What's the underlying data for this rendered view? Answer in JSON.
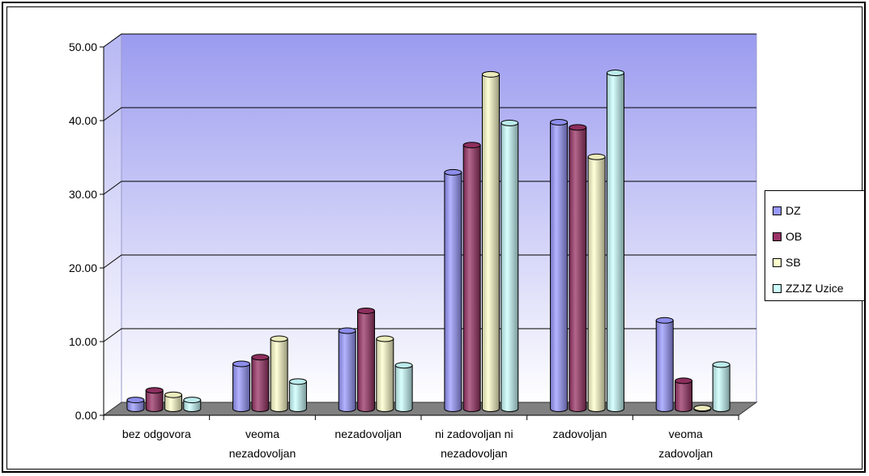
{
  "chart_data": {
    "type": "bar",
    "title": "",
    "xlabel": "",
    "ylabel": "",
    "categories": [
      [
        "bez odgovora"
      ],
      [
        "veoma",
        "nezadovoljan"
      ],
      [
        "nezadovoljan"
      ],
      [
        "ni zadovoljan ni",
        "nezadovoljan"
      ],
      [
        "zadovoljan"
      ],
      [
        "veoma",
        "zadovoljan"
      ]
    ],
    "series": [
      {
        "name": "DZ",
        "values": [
          1.2,
          6.1,
          10.6,
          32.1,
          38.9,
          12.0
        ],
        "color": "#9999ff"
      },
      {
        "name": "OB",
        "values": [
          2.5,
          7.0,
          13.3,
          35.8,
          38.2,
          3.8
        ],
        "color": "#993366"
      },
      {
        "name": "SB",
        "values": [
          1.9,
          9.5,
          9.5,
          45.4,
          34.2,
          0.1
        ],
        "color": "#ffffcc"
      },
      {
        "name": "ZZJZ Uzice",
        "values": [
          1.2,
          3.7,
          5.9,
          38.8,
          45.6,
          6.0
        ],
        "color": "#ccffff"
      }
    ],
    "ylim": [
      0,
      50
    ],
    "yticks": [
      "0.00",
      "10.00",
      "20.00",
      "30.00",
      "40.00",
      "50.00"
    ],
    "grid": true,
    "legend_position": "right",
    "three_d": true
  }
}
